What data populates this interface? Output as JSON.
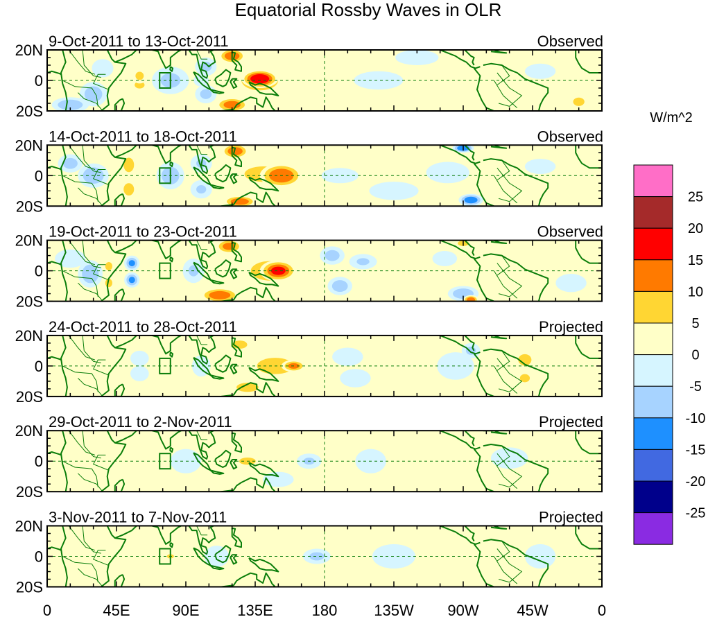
{
  "chart_data": {
    "type": "heatmap",
    "title": "Equatorial Rossby Waves in OLR",
    "units": "W/m^2",
    "x_tick_labels": [
      "0",
      "45E",
      "90E",
      "135E",
      "180",
      "135W",
      "90W",
      "45W",
      "0"
    ],
    "x_tick_lon": [
      0,
      45,
      90,
      135,
      180,
      225,
      270,
      315,
      360
    ],
    "y_tick_labels": [
      "20N",
      "0",
      "20S"
    ],
    "y_tick_lat": [
      20,
      0,
      -20
    ],
    "xlim": [
      0,
      360
    ],
    "ylim": [
      -20,
      20
    ],
    "legend": {
      "placement": "right",
      "labels": [
        "25",
        "20",
        "15",
        "10",
        "5",
        "0",
        "-5",
        "-10",
        "-15",
        "-20",
        "-25"
      ],
      "colors": [
        "#ff6ec7",
        "#a52a2a",
        "#ff0000",
        "#ff7a00",
        "#ffd633",
        "#ffffc8",
        "#d6f5ff",
        "#a7d3ff",
        "#1e90ff",
        "#4169e1",
        "#00008b",
        "#8a2be2"
      ]
    },
    "panels": [
      {
        "date_range": "9-Oct-2011 to 13-Oct-2011",
        "status": "Observed",
        "anomalies": [
          {
            "lon": 138,
            "lat": 1,
            "slon": 12,
            "slat": 6,
            "v": 20
          },
          {
            "lon": 138,
            "lat": 0,
            "slon": 20,
            "slat": 11,
            "v": 8
          },
          {
            "lon": 150,
            "lat": 0,
            "slon": 14,
            "slat": 13,
            "v": 4
          },
          {
            "lon": 120,
            "lat": 16,
            "slon": 9,
            "slat": 5,
            "v": 14
          },
          {
            "lon": 120,
            "lat": -16,
            "slon": 11,
            "slat": 5,
            "v": 13
          },
          {
            "lon": 170,
            "lat": 0,
            "slon": 14,
            "slat": 12,
            "v": 3
          },
          {
            "lon": 80,
            "lat": 0,
            "slon": 12,
            "slat": 9,
            "v": -7
          },
          {
            "lon": 103,
            "lat": 9,
            "slon": 7,
            "slat": 6,
            "v": -7
          },
          {
            "lon": 103,
            "lat": -9,
            "slon": 7,
            "slat": 6,
            "v": -7
          },
          {
            "lon": 100,
            "lat": 0,
            "slon": 5,
            "slat": 4,
            "v": -5
          },
          {
            "lon": 30,
            "lat": -9,
            "slon": 9,
            "slat": 8,
            "v": -9
          },
          {
            "lon": 36,
            "lat": 8,
            "slon": 7,
            "slat": 6,
            "v": -5
          },
          {
            "lon": 15,
            "lat": -16,
            "slon": 12,
            "slat": 5,
            "v": -10
          },
          {
            "lon": 60,
            "lat": 3,
            "slon": 5,
            "slat": 5,
            "v": 7
          },
          {
            "lon": 60,
            "lat": -3,
            "slon": 7,
            "slat": 5,
            "v": 6
          },
          {
            "lon": 60,
            "lat": -14,
            "slon": 6,
            "slat": 5,
            "v": 4
          },
          {
            "lon": 200,
            "lat": 12,
            "slon": 14,
            "slat": 6,
            "v": 3
          },
          {
            "lon": 215,
            "lat": 0,
            "slon": 16,
            "slat": 6,
            "v": -3
          },
          {
            "lon": 240,
            "lat": 15,
            "slon": 14,
            "slat": 5,
            "v": -5
          },
          {
            "lon": 270,
            "lat": 10,
            "slon": 12,
            "slat": 6,
            "v": 3
          },
          {
            "lon": 300,
            "lat": -6,
            "slon": 12,
            "slat": 8,
            "v": 3
          },
          {
            "lon": 320,
            "lat": 6,
            "slon": 10,
            "slat": 5,
            "v": -4
          },
          {
            "lon": 345,
            "lat": 3,
            "slon": 12,
            "slat": 8,
            "v": 3
          },
          {
            "lon": 345,
            "lat": -14,
            "slon": 8,
            "slat": 6,
            "v": 6
          }
        ]
      },
      {
        "date_range": "14-Oct-2011 to 18-Oct-2011",
        "status": "Observed",
        "anomalies": [
          {
            "lon": 152,
            "lat": 0,
            "slon": 14,
            "slat": 8,
            "v": 15
          },
          {
            "lon": 140,
            "lat": 1,
            "slon": 26,
            "slat": 11,
            "v": 6
          },
          {
            "lon": 122,
            "lat": 16,
            "slon": 9,
            "slat": 5,
            "v": 14
          },
          {
            "lon": 125,
            "lat": -17,
            "slon": 11,
            "slat": 4,
            "v": 14
          },
          {
            "lon": 160,
            "lat": -14,
            "slon": 10,
            "slat": 5,
            "v": 4
          },
          {
            "lon": 53,
            "lat": 7,
            "slon": 5,
            "slat": 7,
            "v": 10
          },
          {
            "lon": 53,
            "lat": -9,
            "slon": 5,
            "slat": 6,
            "v": 10
          },
          {
            "lon": 30,
            "lat": 0,
            "slon": 10,
            "slat": 8,
            "v": -10
          },
          {
            "lon": 15,
            "lat": 8,
            "slon": 8,
            "slat": 6,
            "v": -8
          },
          {
            "lon": 80,
            "lat": 0,
            "slon": 9,
            "slat": 9,
            "v": -9
          },
          {
            "lon": 100,
            "lat": 8,
            "slon": 7,
            "slat": 6,
            "v": -6
          },
          {
            "lon": 100,
            "lat": -9,
            "slon": 7,
            "slat": 6,
            "v": -6
          },
          {
            "lon": 260,
            "lat": 2,
            "slon": 14,
            "slat": 7,
            "v": -5
          },
          {
            "lon": 270,
            "lat": 18,
            "slon": 7,
            "slat": 3,
            "v": -15
          },
          {
            "lon": 275,
            "lat": -16,
            "slon": 8,
            "slat": 4,
            "v": -14
          },
          {
            "lon": 225,
            "lat": -10,
            "slon": 16,
            "slat": 6,
            "v": -4
          },
          {
            "lon": 215,
            "lat": 10,
            "slon": 16,
            "slat": 5,
            "v": 3
          },
          {
            "lon": 300,
            "lat": -4,
            "slon": 10,
            "slat": 9,
            "v": 4
          },
          {
            "lon": 320,
            "lat": 6,
            "slon": 10,
            "slat": 5,
            "v": -5
          },
          {
            "lon": 345,
            "lat": -3,
            "slon": 12,
            "slat": 9,
            "v": 3
          },
          {
            "lon": 190,
            "lat": 0,
            "slon": 12,
            "slat": 5,
            "v": -3
          }
        ]
      },
      {
        "date_range": "19-Oct-2011 to 23-Oct-2011",
        "status": "Observed",
        "anomalies": [
          {
            "lon": 150,
            "lat": 0,
            "slon": 12,
            "slat": 7,
            "v": 16
          },
          {
            "lon": 145,
            "lat": 0,
            "slon": 24,
            "slat": 12,
            "v": 7
          },
          {
            "lon": 118,
            "lat": 16,
            "slon": 9,
            "slat": 5,
            "v": 12
          },
          {
            "lon": 112,
            "lat": -16,
            "slon": 13,
            "slat": 5,
            "v": 14
          },
          {
            "lon": 28,
            "lat": -2,
            "slon": 8,
            "slat": 9,
            "v": -10
          },
          {
            "lon": 55,
            "lat": 5,
            "slon": 5,
            "slat": 5,
            "v": -11
          },
          {
            "lon": 55,
            "lat": -6,
            "slon": 5,
            "slat": 5,
            "v": -11
          },
          {
            "lon": 80,
            "lat": 6,
            "slon": 6,
            "slat": 5,
            "v": 5
          },
          {
            "lon": 80,
            "lat": -6,
            "slon": 6,
            "slat": 5,
            "v": 5
          },
          {
            "lon": 95,
            "lat": 0,
            "slon": 7,
            "slat": 8,
            "v": -6
          },
          {
            "lon": 185,
            "lat": 10,
            "slon": 8,
            "slat": 6,
            "v": -8
          },
          {
            "lon": 190,
            "lat": -10,
            "slon": 8,
            "slat": 6,
            "v": -9
          },
          {
            "lon": 205,
            "lat": 6,
            "slon": 9,
            "slat": 5,
            "v": -6
          },
          {
            "lon": 228,
            "lat": 2,
            "slon": 10,
            "slat": 6,
            "v": 4
          },
          {
            "lon": 258,
            "lat": 8,
            "slon": 8,
            "slat": 5,
            "v": -5
          },
          {
            "lon": 270,
            "lat": -15,
            "slon": 10,
            "slat": 5,
            "v": -10
          },
          {
            "lon": 270,
            "lat": 18,
            "slon": 6,
            "slat": 3,
            "v": 8
          },
          {
            "lon": 275,
            "lat": -19,
            "slon": 5,
            "slat": 3,
            "v": 14
          },
          {
            "lon": 320,
            "lat": 2,
            "slon": 8,
            "slat": 8,
            "v": 4
          },
          {
            "lon": 340,
            "lat": -8,
            "slon": 10,
            "slat": 6,
            "v": -4
          },
          {
            "lon": 15,
            "lat": 8,
            "slon": 10,
            "slat": 6,
            "v": -4
          },
          {
            "lon": 40,
            "lat": 3,
            "slon": 5,
            "slat": 6,
            "v": 6
          },
          {
            "lon": 40,
            "lat": -8,
            "slon": 5,
            "slat": 6,
            "v": 6
          }
        ]
      },
      {
        "date_range": "24-Oct-2011 to 28-Oct-2011",
        "status": "Projected",
        "anomalies": [
          {
            "lon": 160,
            "lat": 0,
            "slon": 8,
            "slat": 4,
            "v": 12
          },
          {
            "lon": 148,
            "lat": 0,
            "slon": 22,
            "slat": 10,
            "v": 7
          },
          {
            "lon": 125,
            "lat": 14,
            "slon": 9,
            "slat": 5,
            "v": 7
          },
          {
            "lon": 130,
            "lat": -14,
            "slon": 12,
            "slat": 5,
            "v": 8
          },
          {
            "lon": 60,
            "lat": 5,
            "slon": 6,
            "slat": 5,
            "v": -5
          },
          {
            "lon": 60,
            "lat": -5,
            "slon": 6,
            "slat": 5,
            "v": -5
          },
          {
            "lon": 85,
            "lat": 3,
            "slon": 7,
            "slat": 5,
            "v": 4
          },
          {
            "lon": 85,
            "lat": -6,
            "slon": 7,
            "slat": 5,
            "v": 4
          },
          {
            "lon": 100,
            "lat": 0,
            "slon": 6,
            "slat": 7,
            "v": -4
          },
          {
            "lon": 195,
            "lat": 6,
            "slon": 10,
            "slat": 6,
            "v": -4
          },
          {
            "lon": 200,
            "lat": -8,
            "slon": 10,
            "slat": 6,
            "v": -4
          },
          {
            "lon": 265,
            "lat": 0,
            "slon": 12,
            "slat": 9,
            "v": -5
          },
          {
            "lon": 275,
            "lat": 10,
            "slon": 6,
            "slat": 5,
            "v": -7
          },
          {
            "lon": 310,
            "lat": 4,
            "slon": 8,
            "slat": 7,
            "v": 7
          },
          {
            "lon": 310,
            "lat": -8,
            "slon": 6,
            "slat": 5,
            "v": 7
          },
          {
            "lon": 270,
            "lat": 18,
            "slon": 8,
            "slat": 4,
            "v": 4
          },
          {
            "lon": 340,
            "lat": 0,
            "slon": 12,
            "slat": 8,
            "v": 3
          },
          {
            "lon": 230,
            "lat": 0,
            "slon": 14,
            "slat": 8,
            "v": 2
          },
          {
            "lon": 40,
            "lat": 4,
            "slon": 12,
            "slat": 8,
            "v": 2
          }
        ]
      },
      {
        "date_range": "29-Oct-2011 to 2-Nov-2011",
        "status": "Projected",
        "anomalies": [
          {
            "lon": 130,
            "lat": 0,
            "slon": 9,
            "slat": 4,
            "v": 8
          },
          {
            "lon": 128,
            "lat": 0,
            "slon": 20,
            "slat": 9,
            "v": 4
          },
          {
            "lon": 110,
            "lat": 10,
            "slon": 8,
            "slat": 5,
            "v": 3
          },
          {
            "lon": 110,
            "lat": -10,
            "slon": 8,
            "slat": 5,
            "v": 3
          },
          {
            "lon": 170,
            "lat": 0,
            "slon": 8,
            "slat": 5,
            "v": -6
          },
          {
            "lon": 210,
            "lat": 0,
            "slon": 10,
            "slat": 8,
            "v": -3
          },
          {
            "lon": 90,
            "lat": 0,
            "slon": 10,
            "slat": 8,
            "v": -2
          },
          {
            "lon": 250,
            "lat": 0,
            "slon": 14,
            "slat": 9,
            "v": 2
          },
          {
            "lon": 300,
            "lat": 2,
            "slon": 12,
            "slat": 7,
            "v": -3
          },
          {
            "lon": 40,
            "lat": 0,
            "slon": 20,
            "slat": 12,
            "v": 2
          },
          {
            "lon": 335,
            "lat": 0,
            "slon": 12,
            "slat": 8,
            "v": 2
          },
          {
            "lon": 150,
            "lat": -12,
            "slon": 10,
            "slat": 5,
            "v": -3
          }
        ]
      },
      {
        "date_range": "3-Nov-2011 to 7-Nov-2011",
        "status": "Projected",
        "anomalies": [
          {
            "lon": 175,
            "lat": 0,
            "slon": 9,
            "slat": 5,
            "v": -7
          },
          {
            "lon": 150,
            "lat": 0,
            "slon": 14,
            "slat": 8,
            "v": 2
          },
          {
            "lon": 80,
            "lat": 0,
            "slon": 5,
            "slat": 3,
            "v": 6
          },
          {
            "lon": 225,
            "lat": 0,
            "slon": 14,
            "slat": 8,
            "v": -2
          },
          {
            "lon": 270,
            "lat": 0,
            "slon": 12,
            "slat": 8,
            "v": 2
          },
          {
            "lon": 40,
            "lat": 0,
            "slon": 20,
            "slat": 12,
            "v": 2
          },
          {
            "lon": 110,
            "lat": 0,
            "slon": 8,
            "slat": 7,
            "v": -2
          },
          {
            "lon": 320,
            "lat": 0,
            "slon": 10,
            "slat": 8,
            "v": -2
          }
        ]
      }
    ]
  },
  "colors": {
    "coast": "#0a7d0a",
    "grid_dash": "#0a7d0a",
    "box": "#0a7d0a"
  }
}
